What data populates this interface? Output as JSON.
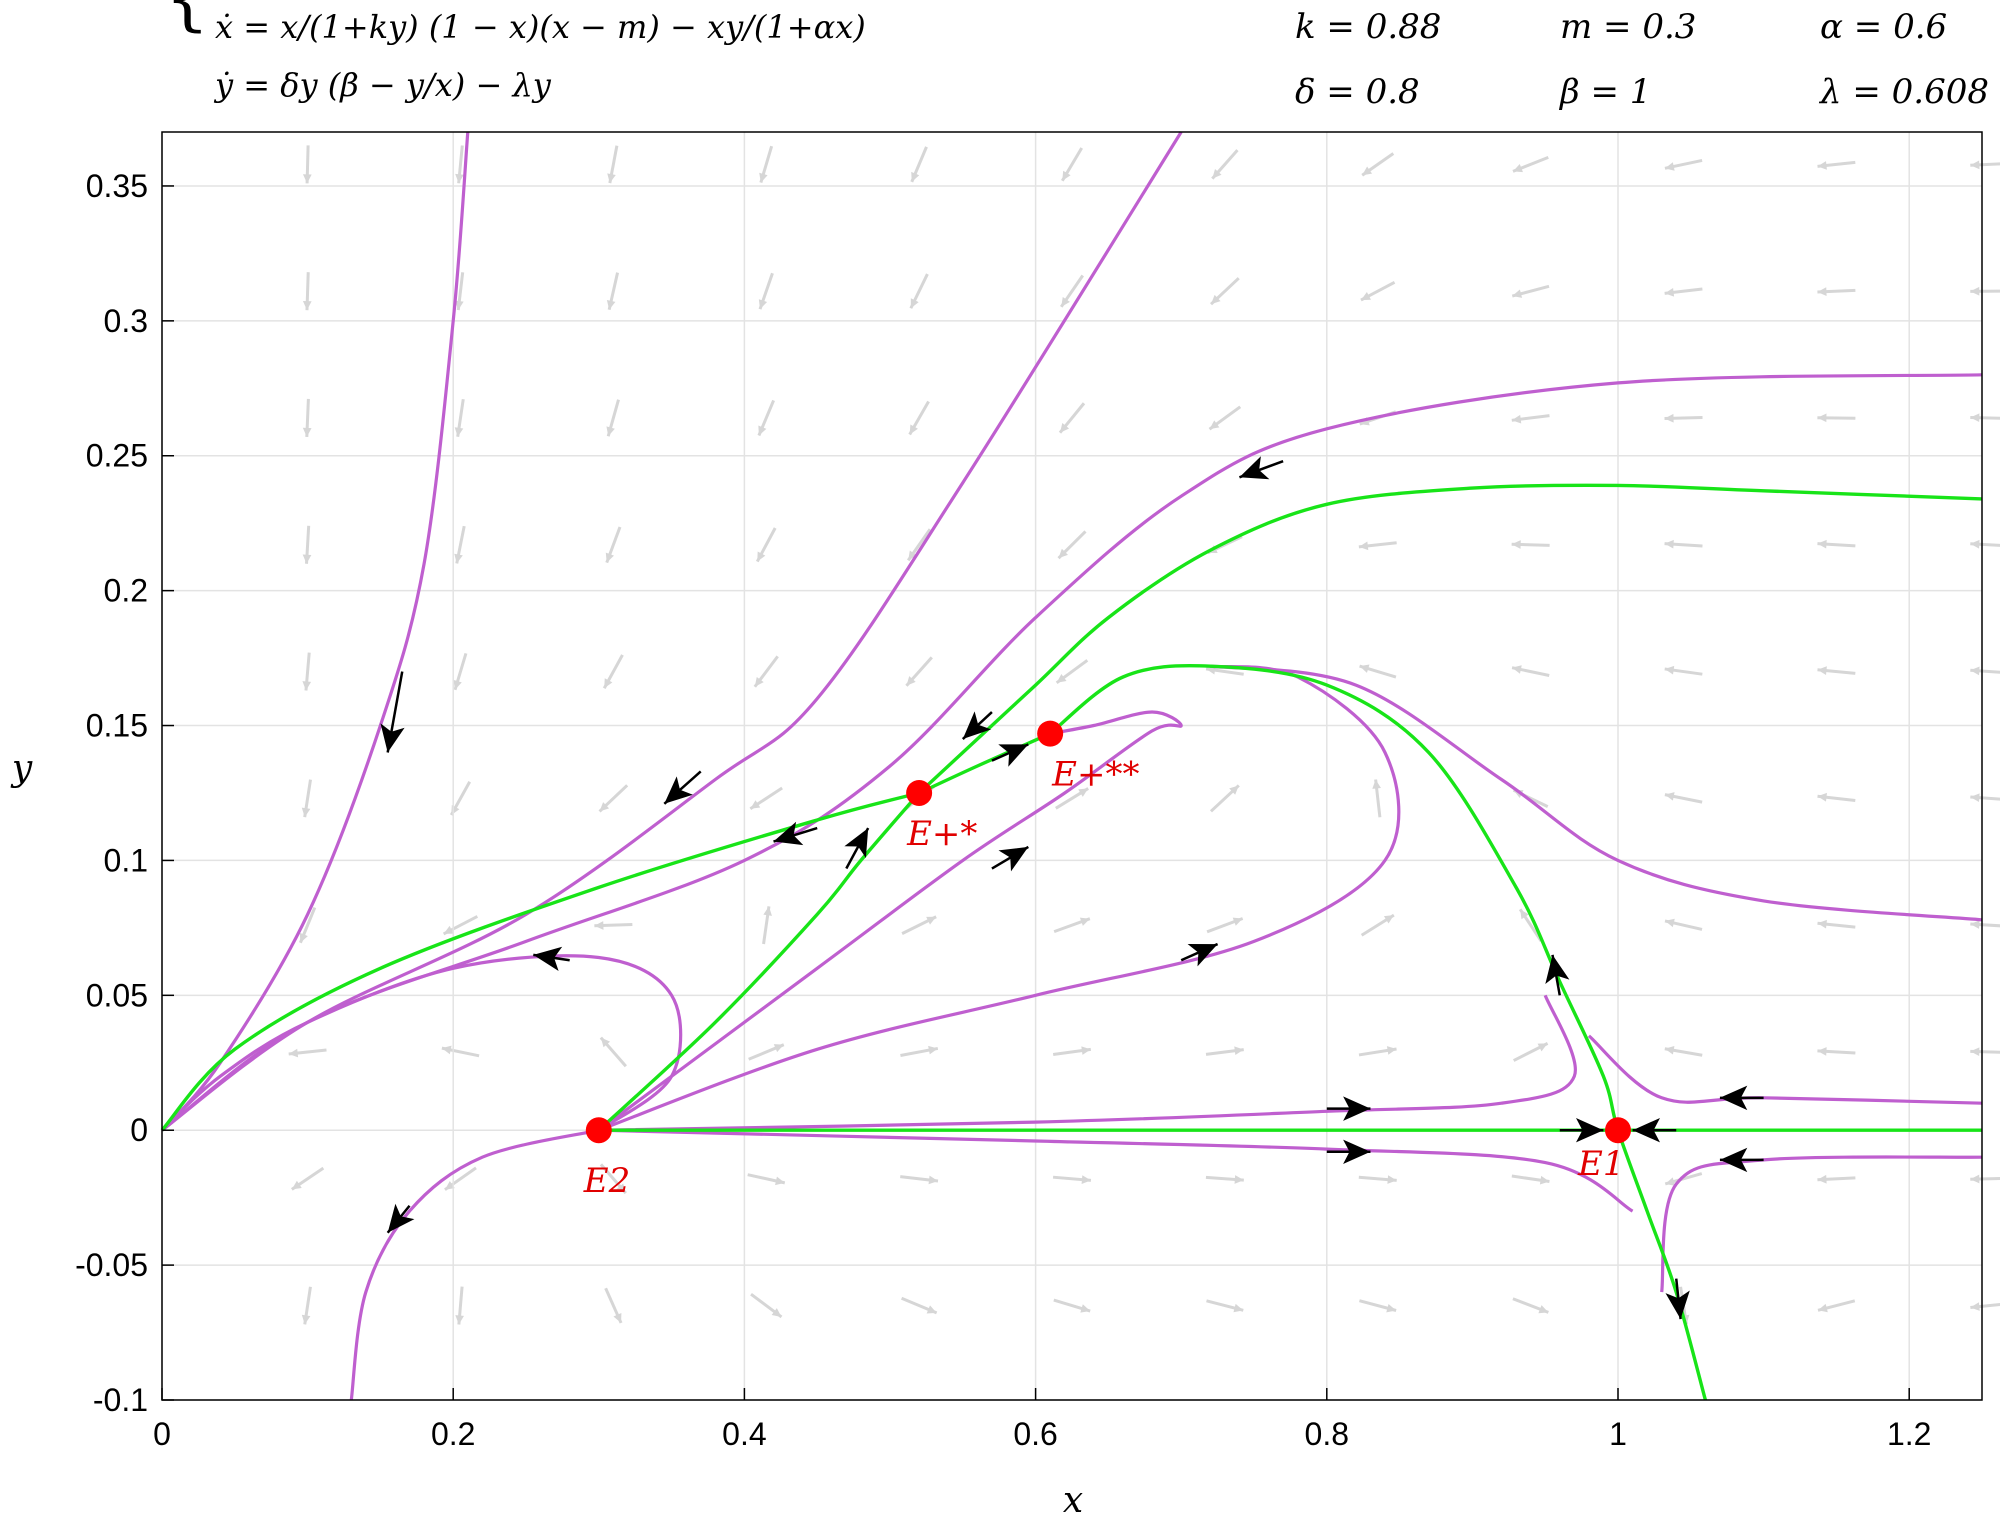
{
  "equations": {
    "line1": "ẋ = x/(1+ky) (1 − x)(x − m) − xy/(1+αx)",
    "line2": "ẏ = δy (β − y/x) − λy"
  },
  "parameters": [
    {
      "text": "k = 0.88"
    },
    {
      "text": "m = 0.3"
    },
    {
      "text": "α = 0.6"
    },
    {
      "text": "δ = 0.8"
    },
    {
      "text": "β = 1"
    },
    {
      "text": "λ = 0.608"
    }
  ],
  "chart_data": {
    "type": "line",
    "xlabel": "x",
    "ylabel": "y",
    "xlim": [
      0,
      1.25
    ],
    "ylim": [
      -0.1,
      0.37
    ],
    "grid": true,
    "xticks": [
      0,
      0.2,
      0.4,
      0.6,
      0.8,
      1,
      1.2
    ],
    "xtick_labels": [
      "0",
      "0.2",
      "0.4",
      "0.6",
      "0.8",
      "1",
      "1.2"
    ],
    "yticks": [
      -0.1,
      -0.05,
      0,
      0.05,
      0.1,
      0.15,
      0.2,
      0.25,
      0.3,
      0.35
    ],
    "ytick_labels": [
      "-0.1",
      "-0.05",
      "0",
      "0.05",
      "0.1",
      "0.15",
      "0.2",
      "0.25",
      "0.3",
      "0.35"
    ],
    "colors": {
      "trajectory": "#bf5fcf",
      "separatrix": "#18e418",
      "equilibrium": "#ff0000",
      "field": "#d6d6d6",
      "arrow": "#000000"
    },
    "equilibria": [
      {
        "label": "E2",
        "x": 0.3,
        "y": 0
      },
      {
        "label": "E1",
        "x": 1.0,
        "y": 0
      },
      {
        "label": "E+*",
        "x": 0.52,
        "y": 0.125
      },
      {
        "label": "E+**",
        "x": 0.61,
        "y": 0.147
      }
    ],
    "separatrices": [
      {
        "points": [
          [
            0.3,
            0
          ],
          [
            0.6,
            0
          ],
          [
            0.9,
            0
          ],
          [
            1.0,
            0
          ],
          [
            1.1,
            0
          ],
          [
            1.25,
            0
          ]
        ]
      },
      {
        "points": [
          [
            0.3,
            0
          ],
          [
            0.38,
            0.04
          ],
          [
            0.45,
            0.08
          ],
          [
            0.48,
            0.1
          ],
          [
            0.52,
            0.125
          ]
        ]
      },
      {
        "points": [
          [
            0.52,
            0.125
          ],
          [
            0.45,
            0.115
          ],
          [
            0.3,
            0.09
          ],
          [
            0.15,
            0.06
          ],
          [
            0.05,
            0.03
          ],
          [
            0,
            0
          ]
        ]
      },
      {
        "points": [
          [
            0.52,
            0.125
          ],
          [
            0.55,
            0.14
          ],
          [
            0.6,
            0.165
          ],
          [
            0.65,
            0.19
          ],
          [
            0.72,
            0.215
          ],
          [
            0.8,
            0.232
          ],
          [
            0.9,
            0.238
          ],
          [
            1.0,
            0.239
          ],
          [
            1.1,
            0.237
          ],
          [
            1.25,
            0.234
          ]
        ]
      },
      {
        "points": [
          [
            0.52,
            0.125
          ],
          [
            0.56,
            0.135
          ],
          [
            0.61,
            0.147
          ]
        ]
      },
      {
        "points": [
          [
            0.61,
            0.147
          ],
          [
            0.66,
            0.168
          ],
          [
            0.72,
            0.172
          ],
          [
            0.8,
            0.165
          ],
          [
            0.87,
            0.14
          ],
          [
            0.93,
            0.09
          ],
          [
            0.96,
            0.055
          ],
          [
            0.99,
            0.02
          ],
          [
            1.0,
            0
          ],
          [
            1.02,
            -0.03
          ],
          [
            1.04,
            -0.06
          ],
          [
            1.06,
            -0.1
          ]
        ]
      }
    ],
    "trajectories": [
      {
        "points": [
          [
            0.13,
            -0.1
          ],
          [
            0.14,
            -0.06
          ],
          [
            0.17,
            -0.03
          ],
          [
            0.22,
            -0.01
          ],
          [
            0.3,
            0
          ]
        ]
      },
      {
        "points": [
          [
            0.3,
            0
          ],
          [
            0.35,
            0.02
          ],
          [
            0.35,
            0.05
          ],
          [
            0.3,
            0.064
          ],
          [
            0.2,
            0.06
          ],
          [
            0.1,
            0.04
          ],
          [
            0.04,
            0.02
          ],
          [
            0,
            0
          ]
        ]
      },
      {
        "points": [
          [
            0.3,
            0
          ],
          [
            0.45,
            0.06
          ],
          [
            0.55,
            0.1
          ],
          [
            0.62,
            0.125
          ],
          [
            0.68,
            0.148
          ],
          [
            0.7,
            0.15
          ],
          [
            0.68,
            0.155
          ],
          [
            0.64,
            0.15
          ],
          [
            0.61,
            0.147
          ]
        ]
      },
      {
        "points": [
          [
            0.3,
            0
          ],
          [
            0.45,
            0.03
          ],
          [
            0.6,
            0.05
          ],
          [
            0.75,
            0.07
          ],
          [
            0.84,
            0.1
          ],
          [
            0.84,
            0.14
          ],
          [
            0.78,
            0.168
          ],
          [
            0.72,
            0.172
          ]
        ]
      },
      {
        "points": [
          [
            0.72,
            0.172
          ],
          [
            0.82,
            0.165
          ],
          [
            0.92,
            0.13
          ],
          [
            1.0,
            0.1
          ],
          [
            1.1,
            0.085
          ],
          [
            1.25,
            0.078
          ]
        ]
      },
      {
        "points": [
          [
            0.3,
            0
          ],
          [
            0.6,
            0.003
          ],
          [
            0.8,
            0.007
          ],
          [
            0.92,
            0.01
          ],
          [
            0.97,
            0.02
          ],
          [
            0.95,
            0.05
          ]
        ]
      },
      {
        "points": [
          [
            1.25,
            0.01
          ],
          [
            1.1,
            0.012
          ],
          [
            1.03,
            0.012
          ],
          [
            0.98,
            0.035
          ]
        ]
      },
      {
        "points": [
          [
            0.3,
            0
          ],
          [
            0.6,
            -0.004
          ],
          [
            0.8,
            -0.007
          ],
          [
            0.95,
            -0.012
          ],
          [
            1.01,
            -0.03
          ]
        ]
      },
      {
        "points": [
          [
            1.25,
            -0.01
          ],
          [
            1.1,
            -0.011
          ],
          [
            1.04,
            -0.02
          ],
          [
            1.03,
            -0.06
          ]
        ]
      },
      {
        "points": [
          [
            1.25,
            0.28
          ],
          [
            1.0,
            0.277
          ],
          [
            0.8,
            0.26
          ],
          [
            0.7,
            0.235
          ],
          [
            0.6,
            0.19
          ],
          [
            0.5,
            0.135
          ],
          [
            0.4,
            0.1
          ],
          [
            0.25,
            0.07
          ],
          [
            0.1,
            0.04
          ],
          [
            0,
            0
          ]
        ]
      },
      {
        "points": [
          [
            0.7,
            0.37
          ],
          [
            0.55,
            0.24
          ],
          [
            0.45,
            0.16
          ],
          [
            0.38,
            0.13
          ],
          [
            0.25,
            0.08
          ],
          [
            0.1,
            0.04
          ],
          [
            0,
            0
          ]
        ]
      },
      {
        "points": [
          [
            0.21,
            0.37
          ],
          [
            0.2,
            0.3
          ],
          [
            0.18,
            0.21
          ],
          [
            0.15,
            0.15
          ],
          [
            0.1,
            0.08
          ],
          [
            0.04,
            0.025
          ],
          [
            0,
            0
          ]
        ]
      }
    ],
    "arrows": [
      {
        "x": 0.165,
        "y": 0.17,
        "dx": -0.01,
        "dy": -0.03
      },
      {
        "x": 0.37,
        "y": 0.133,
        "dx": -0.025,
        "dy": -0.012
      },
      {
        "x": 0.45,
        "y": 0.112,
        "dx": -0.03,
        "dy": -0.005
      },
      {
        "x": 0.77,
        "y": 0.248,
        "dx": -0.03,
        "dy": -0.006
      },
      {
        "x": 0.57,
        "y": 0.155,
        "dx": -0.02,
        "dy": -0.01
      },
      {
        "x": 0.47,
        "y": 0.097,
        "dx": 0.015,
        "dy": 0.015
      },
      {
        "x": 0.57,
        "y": 0.137,
        "dx": 0.025,
        "dy": 0.006
      },
      {
        "x": 0.57,
        "y": 0.097,
        "dx": 0.025,
        "dy": 0.008
      },
      {
        "x": 0.7,
        "y": 0.063,
        "dx": 0.025,
        "dy": 0.006
      },
      {
        "x": 0.28,
        "y": 0.063,
        "dx": -0.025,
        "dy": 0.002
      },
      {
        "x": 0.17,
        "y": -0.028,
        "dx": -0.015,
        "dy": -0.01
      },
      {
        "x": 0.8,
        "y": 0.008,
        "dx": 0.03,
        "dy": 0
      },
      {
        "x": 0.8,
        "y": -0.008,
        "dx": 0.03,
        "dy": 0
      },
      {
        "x": 0.96,
        "y": 0,
        "dx": 0.03,
        "dy": 0
      },
      {
        "x": 1.04,
        "y": 0,
        "dx": -0.03,
        "dy": 0
      },
      {
        "x": 1.1,
        "y": 0.012,
        "dx": -0.03,
        "dy": 0
      },
      {
        "x": 1.1,
        "y": -0.011,
        "dx": -0.03,
        "dy": 0
      },
      {
        "x": 0.96,
        "y": 0.05,
        "dx": -0.005,
        "dy": 0.015
      },
      {
        "x": 1.04,
        "y": -0.055,
        "dx": 0.003,
        "dy": -0.015
      }
    ]
  }
}
